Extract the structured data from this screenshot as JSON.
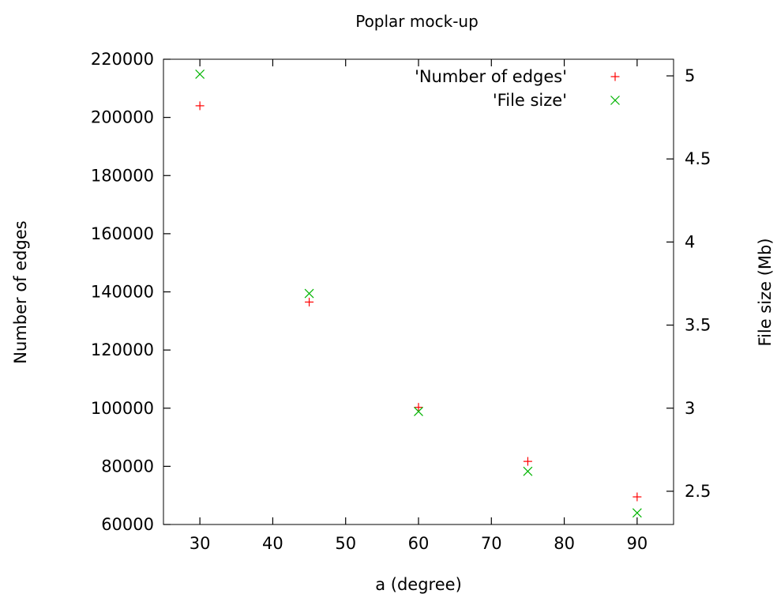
{
  "chart_data": {
    "type": "scatter",
    "title": "Poplar mock-up",
    "xlabel": "a (degree)",
    "ylabel": "Number of edges",
    "y2label": "File size (Mb)",
    "xlim": [
      25,
      95
    ],
    "ylim": [
      60000,
      220000
    ],
    "y2lim": [
      2.3,
      5.1
    ],
    "x_ticks": [
      30,
      40,
      50,
      60,
      70,
      80,
      90
    ],
    "y_ticks": [
      60000,
      80000,
      100000,
      120000,
      140000,
      160000,
      180000,
      200000,
      220000
    ],
    "y2_ticks": [
      2.5,
      3,
      3.5,
      4,
      4.5,
      5
    ],
    "grid": false,
    "legend_position": "top-right",
    "series": [
      {
        "name": "'Number of edges'",
        "axis": "left",
        "marker": "plus",
        "color": "#ff0000",
        "x": [
          30,
          45,
          60,
          75,
          90
        ],
        "y": [
          204000,
          136500,
          100300,
          81700,
          69500
        ]
      },
      {
        "name": "'File size'",
        "axis": "right",
        "marker": "cross",
        "color": "#00b400",
        "x": [
          30,
          45,
          60,
          75,
          90
        ],
        "y": [
          5.01,
          3.69,
          2.98,
          2.62,
          2.37
        ]
      }
    ]
  }
}
